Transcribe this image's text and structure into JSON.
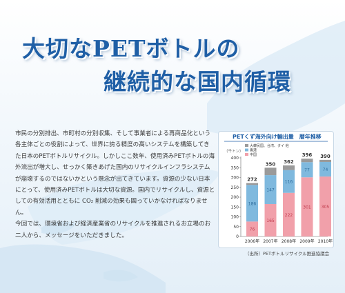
{
  "title": {
    "line1": "大切なPETボトルの",
    "line2": "継続的な国内循環"
  },
  "body": {
    "paragraphs": [
      "市民の分別排出、市町村の分別収集、そして事業者による再商品化という各主体ごとの役割によって、世界に誇る精度の高いシステムを構築してきた日本のPETボトルリサイクル。しかしここ数年、使用済みPETボトルの海外流出が増大し、せっかく築きあげた国内のリサイクルインフラシステムが崩壊するのではないかという懸念が出てきています。資源の少ない日本にとって、使用済みPETボトルは大切な資源。国内でリサイクルし、資源としての有効活用とともに CO₂ 削減の効果も図っていかなければなりません。",
      "今回では、環境省および経済産業省のリサイクルを推進されるお立場のお二人から、メッセージをいただきました。"
    ]
  },
  "colors": {
    "title": "#1f5fa6",
    "series_other": "#9a9a9a",
    "series_hk": "#7fb9de",
    "series_cn": "#f1a0aa"
  },
  "chart_data": {
    "type": "bar",
    "stacked": true,
    "title": "PETくず海外向け輸出量　暦年推移",
    "ylabel": "（千トン）",
    "ylim": [
      0,
      400
    ],
    "yticks": [
      0,
      50,
      100,
      150,
      200,
      250,
      300,
      350,
      400
    ],
    "categories": [
      "2006年",
      "2007年",
      "2008年",
      "2009年",
      "2010年"
    ],
    "series": [
      {
        "name": "中国",
        "values": [
          76,
          165,
          222,
          301,
          305
        ],
        "color": "#f1a0aa"
      },
      {
        "name": "香港",
        "values": [
          186,
          147,
          116,
          77,
          74
        ],
        "color": "#7fb9de"
      },
      {
        "name": "大韓民国、台湾、タイ 他",
        "values": [
          10,
          38,
          24,
          18,
          11
        ],
        "color": "#9a9a9a"
      }
    ],
    "totals": [
      272,
      350,
      362,
      396,
      390
    ],
    "legend_position": "top-left",
    "grid": false,
    "source": "（出所）PETボトルリサイクル推進協議会"
  }
}
